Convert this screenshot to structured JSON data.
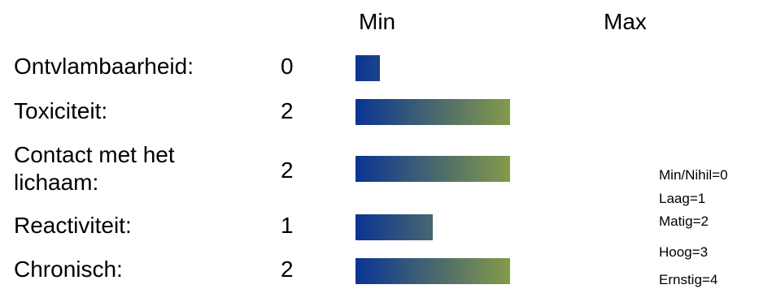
{
  "chart_data": {
    "type": "bar",
    "orientation": "horizontal",
    "headers": {
      "min": "Min",
      "max": "Max"
    },
    "categories": [
      "Ontvlambaarheid:",
      "Toxiciteit:",
      "Contact met het lichaam:",
      "Reactiviteit:",
      "Chronisch:"
    ],
    "values": [
      0,
      2,
      2,
      1,
      2
    ],
    "value_labels": [
      "0",
      "2",
      "2",
      "1",
      "2"
    ],
    "xlim": [
      0,
      4
    ],
    "bar_gradient": [
      "#0a3494",
      "#ffff00"
    ],
    "legend": [
      "Min/Nihil=0",
      "Laag=1",
      "Matig=2",
      "Hoog=3",
      "Ernstig=4"
    ]
  }
}
